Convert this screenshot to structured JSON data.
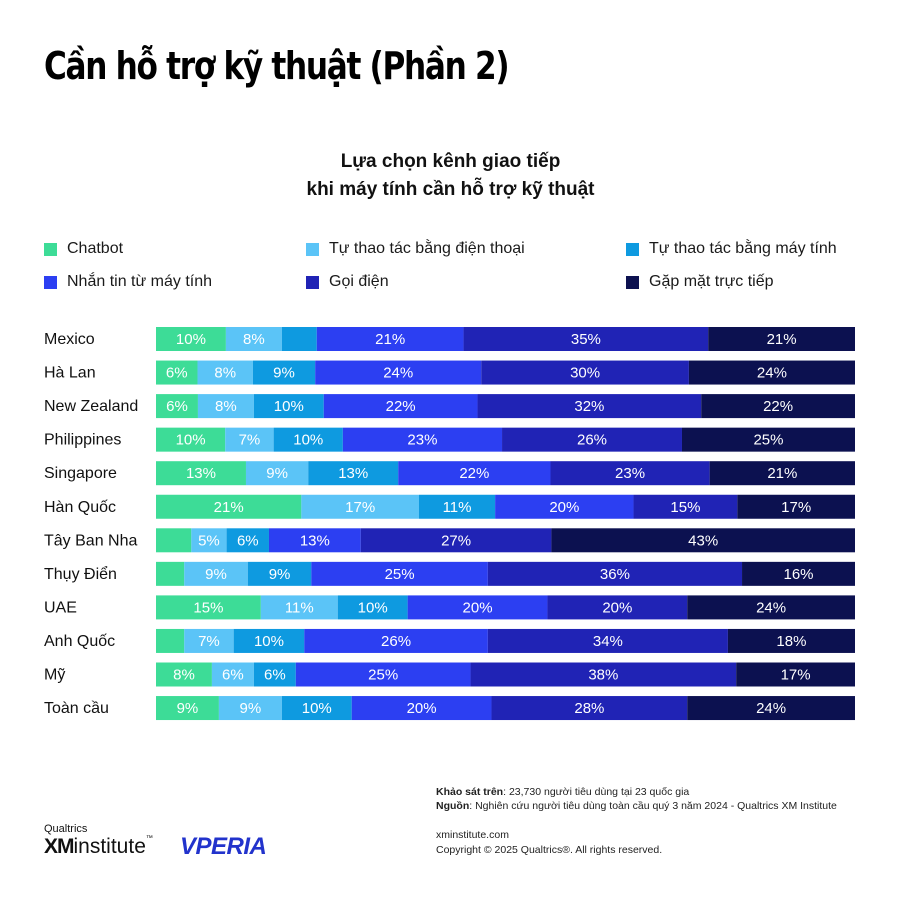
{
  "page_title": "Cần hỗ trợ kỹ thuật (Phần 2)",
  "chart_data": {
    "type": "bar",
    "orientation": "horizontal",
    "stacked": true,
    "title_line1": "Lựa chọn kênh giao tiếp",
    "title_line2": "khi máy tính cần hỗ trợ kỹ thuật",
    "legend_placement": "top",
    "categories": [
      "Mexico",
      "Hà Lan",
      "New Zealand",
      "Philippines",
      "Singapore",
      "Hàn Quốc",
      "Tây Ban Nha",
      "Thụy Điển",
      "UAE",
      "Anh Quốc",
      "Mỹ",
      "Toàn cầu"
    ],
    "series": [
      {
        "name": "Chatbot",
        "color": "#3ddc97",
        "values": [
          10,
          6,
          6,
          10,
          13,
          21,
          5,
          4,
          15,
          4,
          8,
          9
        ]
      },
      {
        "name": "Tự thao tác bằng điện thoại",
        "color": "#5bc4f7",
        "values": [
          8,
          8,
          8,
          7,
          9,
          17,
          5,
          9,
          11,
          7,
          6,
          9
        ]
      },
      {
        "name": "Tự thao tác bằng máy tính",
        "color": "#0e9ae0",
        "values": [
          5,
          9,
          10,
          10,
          13,
          11,
          6,
          9,
          10,
          10,
          6,
          10
        ]
      },
      {
        "name": "Nhắn tin từ máy tính",
        "color": "#2c3ff2",
        "values": [
          21,
          24,
          22,
          23,
          22,
          20,
          13,
          25,
          20,
          26,
          25,
          20
        ]
      },
      {
        "name": "Gọi điện",
        "color": "#2023b5",
        "values": [
          35,
          30,
          32,
          26,
          23,
          15,
          27,
          36,
          20,
          34,
          38,
          28
        ]
      },
      {
        "name": "Gặp mặt trực tiếp",
        "color": "#0c1150",
        "values": [
          21,
          24,
          22,
          25,
          21,
          17,
          43,
          16,
          24,
          18,
          17,
          24
        ]
      }
    ],
    "labels": [
      [
        "10%",
        "8%",
        "",
        "21%",
        "35%",
        "21%"
      ],
      [
        "6%",
        "8%",
        "9%",
        "24%",
        "30%",
        "24%"
      ],
      [
        "6%",
        "8%",
        "10%",
        "22%",
        "32%",
        "22%"
      ],
      [
        "10%",
        "7%",
        "10%",
        "23%",
        "26%",
        "25%"
      ],
      [
        "13%",
        "9%",
        "13%",
        "22%",
        "23%",
        "21%"
      ],
      [
        "21%",
        "17%",
        "11%",
        "20%",
        "15%",
        "17%"
      ],
      [
        "",
        "5%",
        "6%",
        "13%",
        "27%",
        "43%"
      ],
      [
        "",
        "9%",
        "9%",
        "25%",
        "36%",
        "16%"
      ],
      [
        "15%",
        "11%",
        "10%",
        "20%",
        "20%",
        "24%"
      ],
      [
        "",
        "7%",
        "10%",
        "26%",
        "34%",
        "18%"
      ],
      [
        "8%",
        "6%",
        "6%",
        "25%",
        "38%",
        "17%"
      ],
      [
        "9%",
        "9%",
        "10%",
        "20%",
        "28%",
        "24%"
      ]
    ]
  },
  "footer": {
    "survey_label": "Khảo sát trên",
    "survey_text": ": 23,730 người tiêu dùng tại 23 quốc gia",
    "source_label": "Nguồn",
    "source_text": ": Nghiên cứu người tiêu dùng toàn cầu quý 3 năm 2024 - Qualtrics XM Institute",
    "website": "xminstitute.com",
    "copyright": "Copyright © 2025 Qualtrics®. All rights reserved."
  },
  "logos": {
    "qualtrics": "Qualtrics",
    "xm": "XM",
    "institute": "institute",
    "tm": "™",
    "vperia": "VPERIA"
  }
}
